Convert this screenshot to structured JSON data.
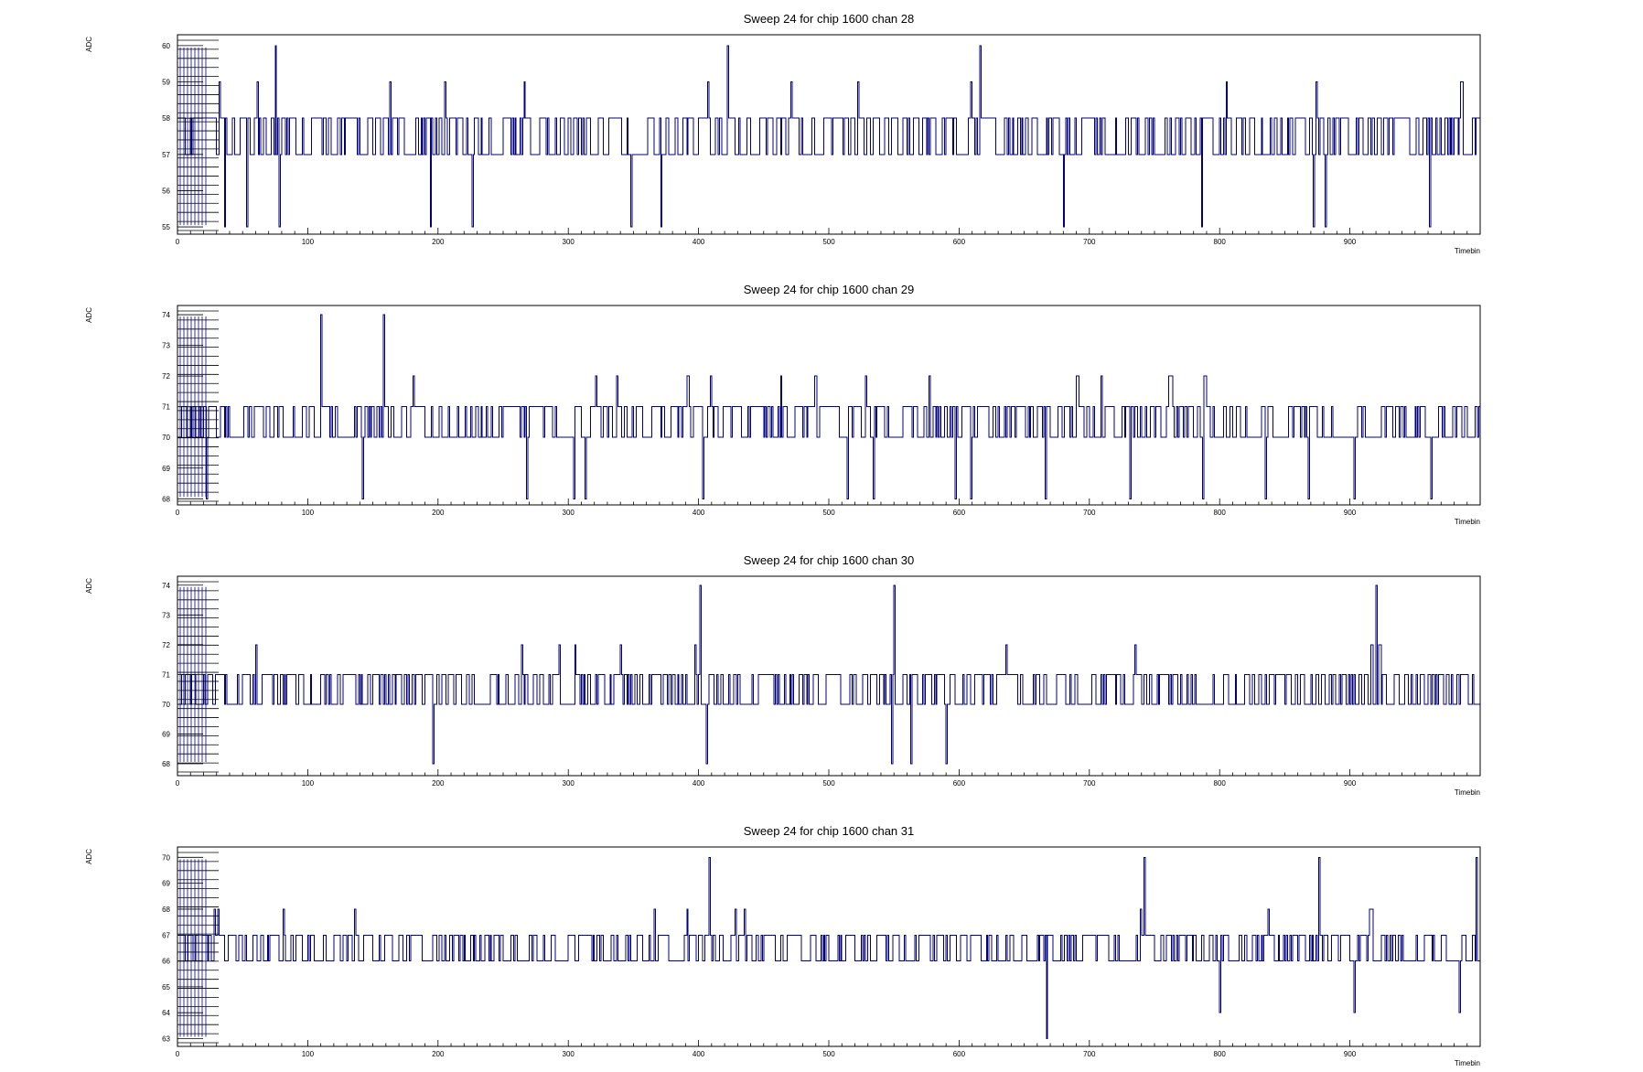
{
  "chart_data": [
    {
      "type": "line",
      "title": "Sweep 24 for chip 1600 chan 28",
      "xlabel": "Timebin",
      "ylabel": "ADC",
      "xlim": [
        0,
        1000
      ],
      "ylim": [
        54.8,
        60.3
      ],
      "x_ticks": [
        0,
        100,
        200,
        300,
        400,
        500,
        600,
        700,
        800,
        900
      ],
      "y_ticks": [
        55,
        56,
        57,
        58,
        59,
        60
      ],
      "baseline": 57.5,
      "spread": 1.0,
      "seed": 28,
      "extreme_points": [
        {
          "x": 36,
          "y": 55
        },
        {
          "x": 53,
          "y": 55
        },
        {
          "x": 75,
          "y": 60
        },
        {
          "x": 78,
          "y": 55
        },
        {
          "x": 194,
          "y": 55
        },
        {
          "x": 226,
          "y": 55
        },
        {
          "x": 348,
          "y": 55
        },
        {
          "x": 371,
          "y": 55
        },
        {
          "x": 422,
          "y": 60
        },
        {
          "x": 616,
          "y": 60
        },
        {
          "x": 680,
          "y": 55
        },
        {
          "x": 786,
          "y": 55
        },
        {
          "x": 872,
          "y": 55
        },
        {
          "x": 881,
          "y": 55
        },
        {
          "x": 961,
          "y": 55
        }
      ],
      "style": {
        "line_color": "#00007f"
      }
    },
    {
      "type": "line",
      "title": "Sweep 24 for chip 1600 chan 29",
      "xlabel": "Timebin",
      "ylabel": "ADC",
      "xlim": [
        0,
        1000
      ],
      "ylim": [
        67.8,
        74.3
      ],
      "x_ticks": [
        0,
        100,
        200,
        300,
        400,
        500,
        600,
        700,
        800,
        900
      ],
      "y_ticks": [
        68,
        69,
        70,
        71,
        72,
        73,
        74
      ],
      "baseline": 70.5,
      "spread": 1.0,
      "seed": 29,
      "extreme_points": [
        {
          "x": 22,
          "y": 68
        },
        {
          "x": 110,
          "y": 74
        },
        {
          "x": 142,
          "y": 68
        },
        {
          "x": 158,
          "y": 74
        },
        {
          "x": 268,
          "y": 68
        },
        {
          "x": 304,
          "y": 68
        },
        {
          "x": 313,
          "y": 68
        },
        {
          "x": 403,
          "y": 68
        },
        {
          "x": 514,
          "y": 68
        },
        {
          "x": 534,
          "y": 68
        },
        {
          "x": 597,
          "y": 68
        },
        {
          "x": 609,
          "y": 68
        },
        {
          "x": 666,
          "y": 68
        },
        {
          "x": 731,
          "y": 68
        },
        {
          "x": 787,
          "y": 68
        },
        {
          "x": 835,
          "y": 68
        },
        {
          "x": 868,
          "y": 68
        },
        {
          "x": 903,
          "y": 68
        },
        {
          "x": 962,
          "y": 68
        }
      ],
      "style": {
        "line_color": "#00007f"
      }
    },
    {
      "type": "line",
      "title": "Sweep 24 for chip 1600 chan 30",
      "xlabel": "Timebin",
      "ylabel": "ADC",
      "xlim": [
        0,
        1000
      ],
      "ylim": [
        67.6,
        74.3
      ],
      "x_ticks": [
        0,
        100,
        200,
        300,
        400,
        500,
        600,
        700,
        800,
        900
      ],
      "y_ticks": [
        68,
        69,
        70,
        71,
        72,
        73,
        74
      ],
      "baseline": 70.5,
      "spread": 1.0,
      "seed": 30,
      "extreme_points": [
        {
          "x": 196,
          "y": 68
        },
        {
          "x": 401,
          "y": 74
        },
        {
          "x": 406,
          "y": 68
        },
        {
          "x": 548,
          "y": 68
        },
        {
          "x": 550,
          "y": 74
        },
        {
          "x": 563,
          "y": 68
        },
        {
          "x": 590,
          "y": 68
        },
        {
          "x": 920,
          "y": 74
        }
      ],
      "style": {
        "line_color": "#00007f"
      }
    },
    {
      "type": "line",
      "title": "Sweep 24 for chip 1600 chan 31",
      "xlabel": "Timebin",
      "ylabel": "ADC",
      "xlim": [
        0,
        1000
      ],
      "ylim": [
        62.7,
        70.4
      ],
      "x_ticks": [
        0,
        100,
        200,
        300,
        400,
        500,
        600,
        700,
        800,
        900
      ],
      "y_ticks": [
        63,
        64,
        65,
        66,
        67,
        68,
        69,
        70
      ],
      "baseline": 66.5,
      "spread": 1.0,
      "seed": 31,
      "extreme_points": [
        {
          "x": 408,
          "y": 70
        },
        {
          "x": 667,
          "y": 63
        },
        {
          "x": 742,
          "y": 70
        },
        {
          "x": 800,
          "y": 64
        },
        {
          "x": 876,
          "y": 70
        },
        {
          "x": 903,
          "y": 64
        },
        {
          "x": 984,
          "y": 64
        },
        {
          "x": 997,
          "y": 70
        }
      ],
      "style": {
        "line_color": "#00007f"
      }
    }
  ]
}
